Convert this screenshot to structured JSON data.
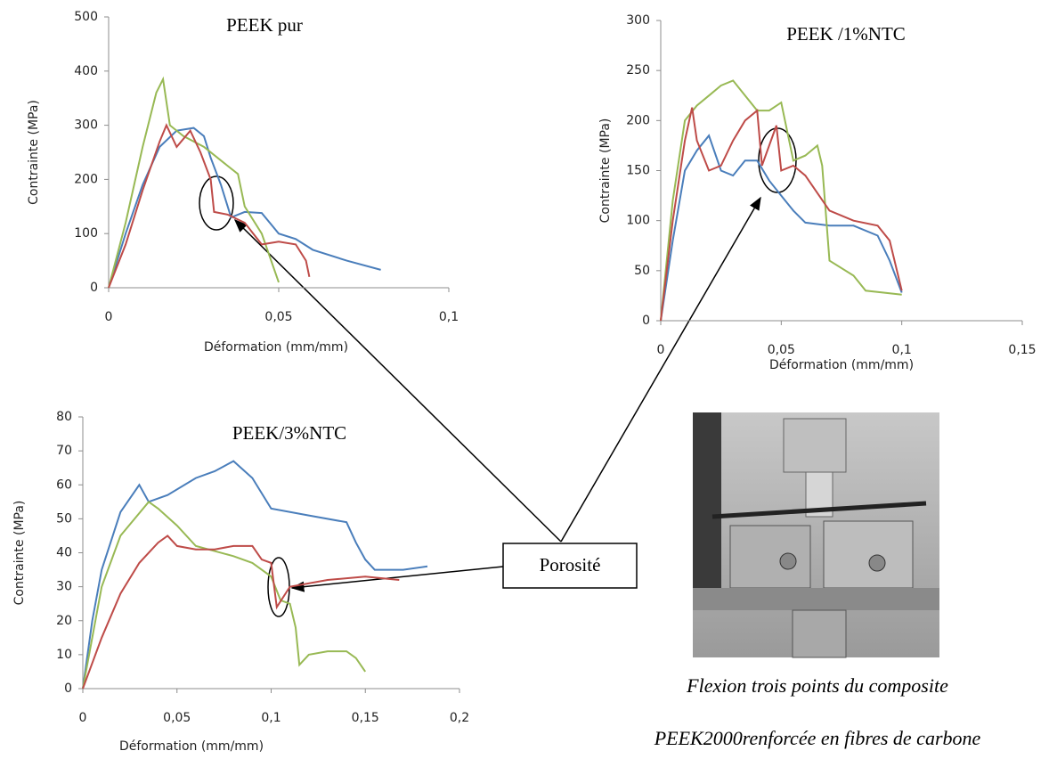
{
  "chart_data": [
    {
      "type": "line",
      "title": "PEEK pur",
      "xlabel": "Déformation (mm/mm)",
      "ylabel": "Contrainte  (MPa)",
      "xlim": [
        0,
        0.1
      ],
      "xticks": [
        0,
        {
          "value": 0.05,
          "label": "0,05"
        },
        {
          "value": 0.1,
          "label": "0,1"
        }
      ],
      "ylim": [
        0,
        500
      ],
      "yticks": [
        0,
        100,
        200,
        300,
        400,
        500
      ],
      "series": [
        {
          "color": "#4a7ebb",
          "x": [
            0,
            0.005,
            0.01,
            0.015,
            0.02,
            0.025,
            0.028,
            0.03,
            0.033,
            0.036,
            0.04,
            0.045,
            0.05,
            0.055,
            0.06,
            0.07,
            0.08
          ],
          "values": [
            0,
            100,
            190,
            260,
            290,
            295,
            280,
            240,
            190,
            130,
            140,
            138,
            100,
            90,
            70,
            50,
            33
          ]
        },
        {
          "color": "#98b954",
          "x": [
            0,
            0.005,
            0.01,
            0.014,
            0.016,
            0.018,
            0.022,
            0.028,
            0.034,
            0.038,
            0.04,
            0.045,
            0.05
          ],
          "values": [
            0,
            120,
            260,
            360,
            385,
            300,
            280,
            260,
            230,
            210,
            150,
            100,
            10
          ]
        },
        {
          "color": "#be4b48",
          "x": [
            0,
            0.005,
            0.01,
            0.015,
            0.017,
            0.02,
            0.024,
            0.027,
            0.03,
            0.031,
            0.035,
            0.04,
            0.045,
            0.05,
            0.055,
            0.058,
            0.059
          ],
          "values": [
            0,
            80,
            180,
            270,
            300,
            260,
            290,
            250,
            200,
            140,
            135,
            120,
            80,
            85,
            80,
            50,
            20
          ]
        }
      ]
    },
    {
      "type": "line",
      "title": "PEEK /1%NTC",
      "xlabel": "Déformation (mm/mm)",
      "ylabel": "Contrainte (MPa)",
      "xlim": [
        0,
        0.15
      ],
      "xticks": [
        0,
        {
          "value": 0.05,
          "label": "0,05"
        },
        {
          "value": 0.1,
          "label": "0,1"
        },
        {
          "value": 0.15,
          "label": "0,15"
        }
      ],
      "ylim": [
        0,
        300
      ],
      "yticks": [
        0,
        50,
        100,
        150,
        200,
        250,
        300
      ],
      "series": [
        {
          "color": "#4a7ebb",
          "x": [
            0,
            0.005,
            0.01,
            0.015,
            0.02,
            0.025,
            0.03,
            0.035,
            0.04,
            0.045,
            0.05,
            0.055,
            0.06,
            0.07,
            0.08,
            0.09,
            0.095,
            0.1
          ],
          "values": [
            0,
            80,
            150,
            170,
            185,
            150,
            145,
            160,
            160,
            140,
            125,
            110,
            98,
            95,
            95,
            85,
            60,
            28
          ]
        },
        {
          "color": "#98b954",
          "x": [
            0,
            0.005,
            0.01,
            0.015,
            0.02,
            0.025,
            0.03,
            0.035,
            0.04,
            0.045,
            0.05,
            0.055,
            0.06,
            0.065,
            0.067,
            0.07,
            0.08,
            0.085,
            0.1
          ],
          "values": [
            0,
            120,
            200,
            215,
            225,
            235,
            240,
            225,
            210,
            210,
            218,
            160,
            165,
            175,
            155,
            60,
            45,
            30,
            26
          ]
        },
        {
          "color": "#be4b48",
          "x": [
            0,
            0.005,
            0.01,
            0.013,
            0.015,
            0.02,
            0.025,
            0.03,
            0.035,
            0.04,
            0.042,
            0.045,
            0.048,
            0.05,
            0.055,
            0.06,
            0.07,
            0.08,
            0.09,
            0.095,
            0.1
          ],
          "values": [
            0,
            100,
            180,
            213,
            180,
            150,
            155,
            180,
            200,
            210,
            155,
            175,
            195,
            150,
            155,
            145,
            110,
            100,
            95,
            80,
            30
          ]
        }
      ]
    },
    {
      "type": "line",
      "title": "PEEK/3%NTC",
      "xlabel": "Déformation (mm/mm)",
      "ylabel": "Contrainte (MPa)",
      "xlim": [
        0,
        0.2
      ],
      "xticks": [
        0,
        {
          "value": 0.05,
          "label": "0,05"
        },
        {
          "value": 0.1,
          "label": "0,1"
        },
        {
          "value": 0.15,
          "label": "0,15"
        },
        {
          "value": 0.2,
          "label": "0,2"
        }
      ],
      "ylim": [
        0,
        80
      ],
      "yticks": [
        0,
        10,
        20,
        30,
        40,
        50,
        60,
        70,
        80
      ],
      "series": [
        {
          "color": "#4a7ebb",
          "x": [
            0,
            0.005,
            0.01,
            0.02,
            0.03,
            0.035,
            0.045,
            0.06,
            0.07,
            0.08,
            0.09,
            0.1,
            0.12,
            0.14,
            0.145,
            0.15,
            0.155,
            0.16,
            0.17,
            0.183
          ],
          "values": [
            0,
            20,
            35,
            52,
            60,
            55,
            57,
            62,
            64,
            67,
            62,
            53,
            51,
            49,
            43,
            38,
            35,
            35,
            35,
            36
          ]
        },
        {
          "color": "#98b954",
          "x": [
            0,
            0.005,
            0.01,
            0.02,
            0.035,
            0.04,
            0.05,
            0.06,
            0.08,
            0.09,
            0.1,
            0.105,
            0.11,
            0.113,
            0.115,
            0.12,
            0.13,
            0.14,
            0.145,
            0.15
          ],
          "values": [
            0,
            15,
            30,
            45,
            55,
            53,
            48,
            42,
            39,
            37,
            33,
            26,
            25,
            18,
            7,
            10,
            11,
            11,
            9,
            5
          ]
        },
        {
          "color": "#be4b48",
          "x": [
            0,
            0.01,
            0.02,
            0.03,
            0.04,
            0.045,
            0.05,
            0.06,
            0.07,
            0.08,
            0.09,
            0.095,
            0.1,
            0.103,
            0.11,
            0.13,
            0.15,
            0.168
          ],
          "values": [
            0,
            15,
            28,
            37,
            43,
            45,
            42,
            41,
            41,
            42,
            42,
            38,
            37,
            24,
            30,
            32,
            33,
            32
          ]
        }
      ]
    }
  ],
  "annotation": "Porosité",
  "caption": [
    "Flexion trois points du composite",
    "PEEK2000renforcée en fibres de carbone"
  ]
}
